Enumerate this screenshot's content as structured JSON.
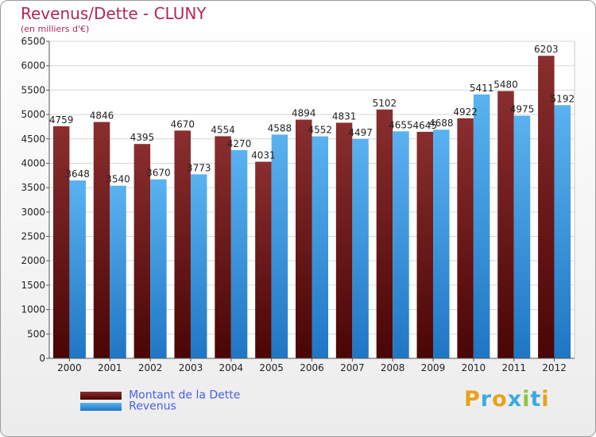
{
  "chart_data": {
    "type": "bar",
    "title": "Revenus/Dette - CLUNY",
    "subtitle": "(en milliers d'€)",
    "xlabel": "",
    "ylabel": "",
    "categories": [
      "2000",
      "2001",
      "2002",
      "2003",
      "2004",
      "2005",
      "2006",
      "2007",
      "2008",
      "2009",
      "2010",
      "2011",
      "2012"
    ],
    "series": [
      {
        "name": "Montant de la Dette",
        "color": "#7a1c1c",
        "values": [
          4759,
          4846,
          4395,
          4670,
          4554,
          4031,
          4894,
          4831,
          5102,
          4645,
          4922,
          5480,
          6203
        ]
      },
      {
        "name": "Revenus",
        "color": "#3a9ae0",
        "values": [
          3648,
          3540,
          3670,
          3773,
          4270,
          4588,
          4552,
          4497,
          4655,
          4688,
          5411,
          4975,
          5192
        ]
      }
    ],
    "ylim": [
      0,
      6500
    ],
    "yticks": [
      0,
      500,
      1000,
      1500,
      2000,
      2500,
      3000,
      3500,
      4000,
      4500,
      5000,
      5500,
      6000,
      6500
    ],
    "grid": true,
    "legend_position": "bottom-left"
  },
  "brand": {
    "text": "Proxiti"
  }
}
